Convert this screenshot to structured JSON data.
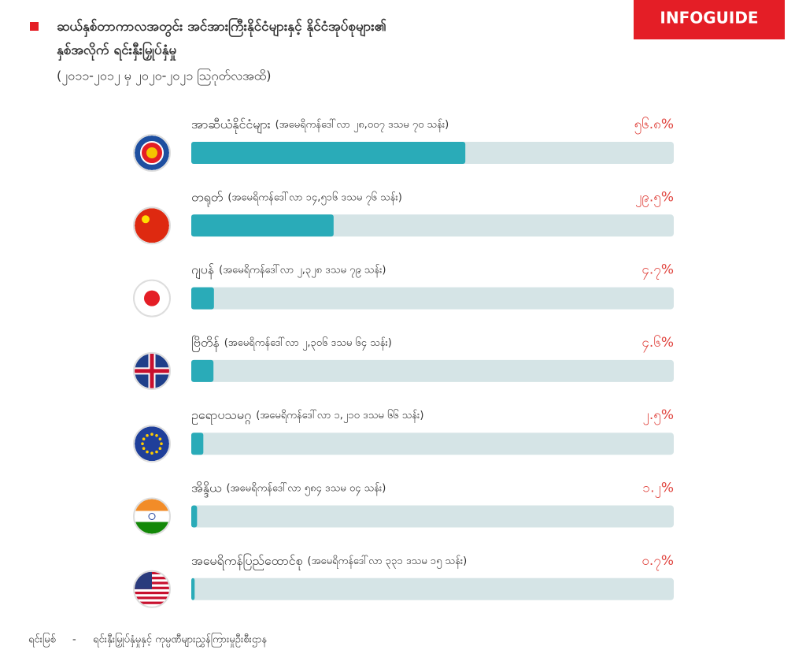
{
  "chart_data": {
    "type": "bar",
    "orientation": "horizontal",
    "badge": "INFOGUIDE",
    "title": [
      "ဆယ်နှစ်တာကာလအတွင်း အင်အားကြီးနိုင်ငံများနှင့် နိုင်ငံအုပ်စုများ၏",
      "နှစ်အလိုက် ရင်းနှီးမြှုပ်နှံမှု"
    ],
    "subtitle": "(၂၀၁၁-၂၀၁၂ မှ ၂၀၂၀-၂၀၂၁ ဩဂုတ်လအထိ)",
    "categories": [
      "အာဆီယံနိုင်ငံများ",
      "တရုတ်",
      "ဂျပန်",
      "ဗြိတိန်",
      "ဥရောပသမဂ္ဂ",
      "အိန္ဒိယ",
      "အမေရိကန်ပြည်ထောင်စု"
    ],
    "details": [
      "(အမေရိကန်ဒေါ်လာ ၂၈,၀၀၇ ဒသမ ၇၀ သန်း)",
      "(အမေရိကန်ဒေါ်လာ ၁၄,၅၁၆ ဒသမ ၇၆ သန်း)",
      "(အမေရိကန်ဒေါ်လာ ၂,၃၂၈ ဒသမ ၇၉ သန်း)",
      "(အမေရိကန်ဒေါ်လာ ၂,၃၀၆ ဒသမ ၆၄ သန်း)",
      "(အမေရိကန်ဒေါ်လာ ၁,၂၁၀ ဒသမ ၆၆ သန်း)",
      "(အမေရိကန်ဒေါ်လာ ၅၈၄ ဒသမ ၀၄ သန်း)",
      "(အမေရိကန်ဒေါ်လာ ၃၃၁ ဒသမ ၁၅ သန်း)"
    ],
    "values": [
      56.8,
      29.5,
      4.7,
      4.6,
      2.5,
      1.2,
      0.7
    ],
    "value_labels": [
      "၅၆.၈%",
      "၂၉.၅%",
      "၄.၇%",
      "၄.၆%",
      "၂.၅%",
      "၁.၂%",
      "၀.၇%"
    ],
    "color": "#2aabb8",
    "track_color": "#d5e4e6",
    "label_color": "#e0443e",
    "xlim": [
      0,
      100
    ],
    "source": [
      "ရင်းမြစ်",
      "-",
      "ရင်းနှီးမြှုပ်နှံမှုနှင့် ကုမ္ပဏီများညွှန်ကြားမှုဦးစီးဌာန"
    ]
  }
}
